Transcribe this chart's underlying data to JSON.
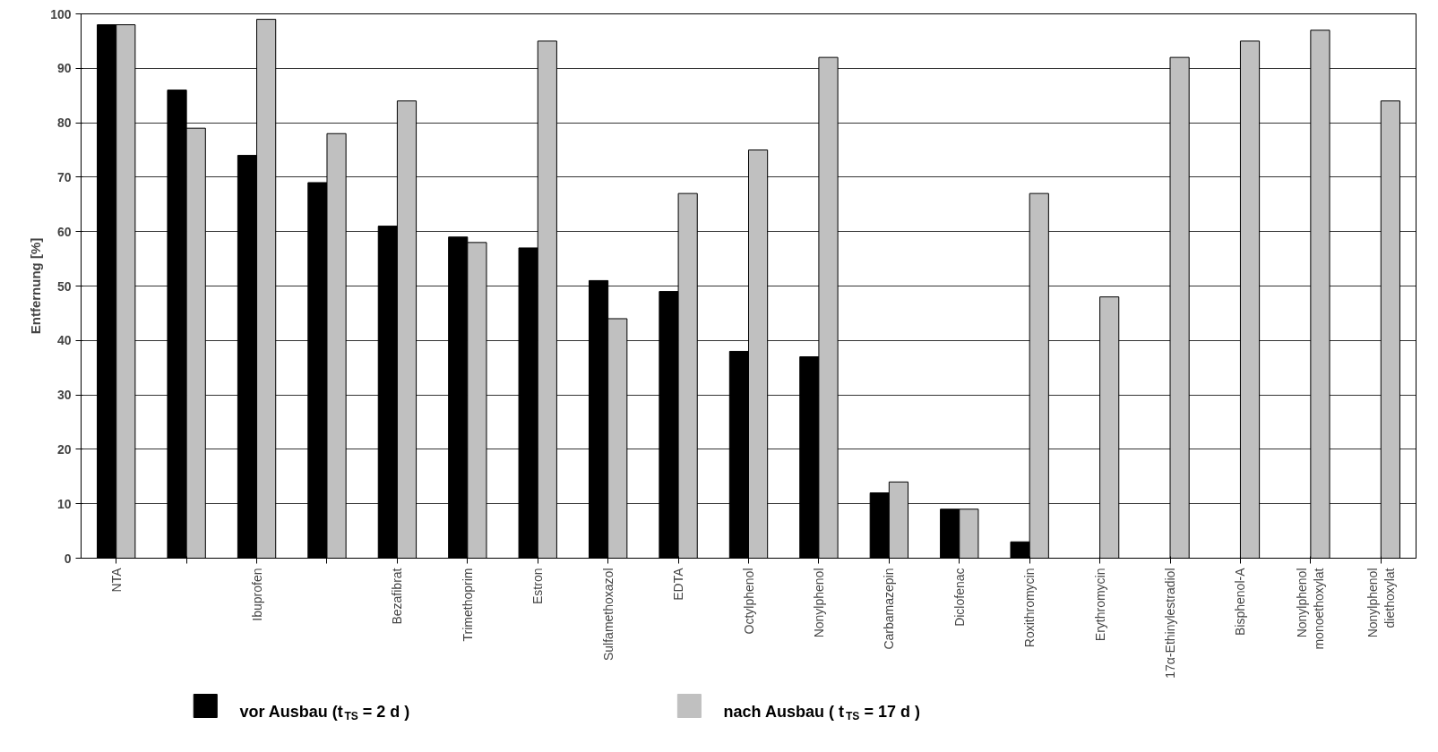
{
  "chart_data": {
    "type": "bar",
    "ylabel": "Entfernung [%]",
    "categories": [
      "NTA",
      null,
      "Ibuprofen",
      null,
      "Bezafibrat",
      "Trimethoprim",
      "Estron",
      "Sulfamethoxazol",
      "EDTA",
      "Octylphenol",
      "Nonylphenol",
      "Carbamazepin",
      "Diclofenac",
      "Roxithromycin",
      "Erythromycin",
      "17α-Ethinylestradiol",
      "Bisphenol-A",
      "Nonylphenol\nmonoethoxylat",
      "Nonylphenol\ndiethoxylat"
    ],
    "series": [
      {
        "name": "vor Ausbau (t$_{TS}$ = 2 d )",
        "color": "#000000",
        "values": [
          98,
          86,
          74,
          69,
          61,
          59,
          57,
          51,
          49,
          38,
          37,
          12,
          9,
          3,
          null,
          null,
          null,
          null,
          null
        ]
      },
      {
        "name": "nach Ausbau ( t$_{TS}$ = 17 d )",
        "color": "#c0c0c0",
        "values": [
          98,
          79,
          99,
          78,
          84,
          58,
          95,
          44,
          67,
          75,
          92,
          14,
          9,
          67,
          48,
          92,
          95,
          97,
          84
        ]
      }
    ],
    "ylim": [
      0,
      100
    ],
    "yticks": [
      0,
      10,
      20,
      30,
      40,
      50,
      60,
      70,
      80,
      90,
      100
    ],
    "grid": "y",
    "legend": "bottom"
  }
}
